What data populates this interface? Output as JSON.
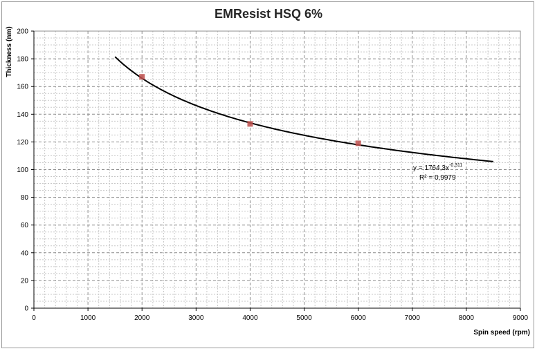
{
  "chart_data": {
    "type": "scatter",
    "title": "EMResist HSQ 6%",
    "xlabel": "Spin speed (rpm)",
    "ylabel": "Thickness (nm)",
    "xlim": [
      0,
      9000
    ],
    "ylim": [
      0,
      200
    ],
    "x_ticks": [
      "0",
      "1000",
      "2000",
      "3000",
      "4000",
      "5000",
      "6000",
      "7000",
      "8000",
      "9000"
    ],
    "y_ticks": [
      "0",
      "20",
      "40",
      "60",
      "80",
      "100",
      "120",
      "140",
      "160",
      "180",
      "200"
    ],
    "grid": true,
    "series": [
      {
        "values": [
          {
            "x": 2000,
            "y": 167
          },
          {
            "x": 4000,
            "y": 133
          },
          {
            "x": 6000,
            "y": 119
          }
        ],
        "color": "#c0504d",
        "marker": "square"
      }
    ],
    "trendline": {
      "type": "power",
      "coefficient": 1764.3,
      "exponent": -0.311,
      "x_range": [
        1500,
        8500
      ],
      "color": "#000000",
      "equation_prefix": "y = 1764,3x",
      "equation_exponent": "-0,311",
      "r_squared": "R² = 0,9979"
    }
  }
}
